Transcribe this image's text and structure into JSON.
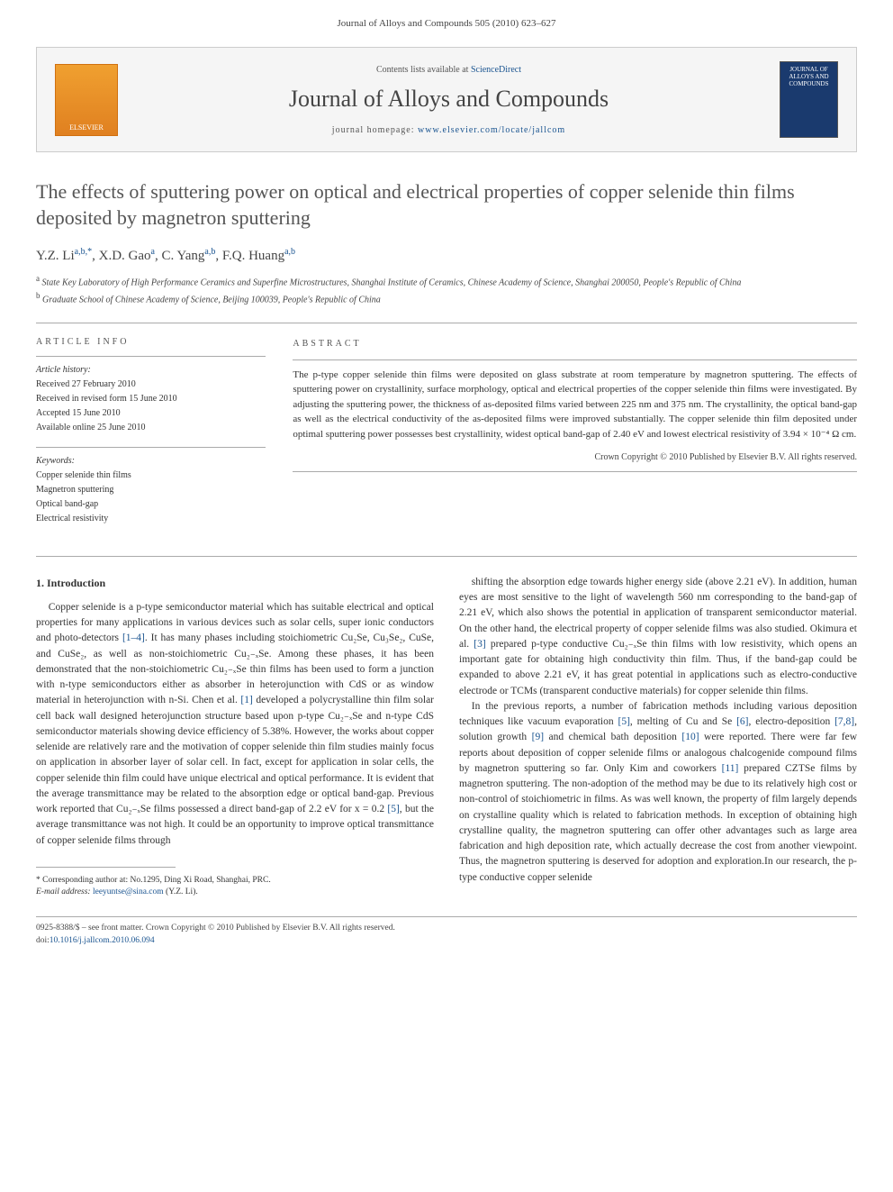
{
  "header": {
    "citation": "Journal of Alloys and Compounds 505 (2010) 623–627"
  },
  "banner": {
    "elsevier_label": "ELSEVIER",
    "contents_text": "Contents lists available at ",
    "contents_link": "ScienceDirect",
    "journal_name": "Journal of Alloys and Compounds",
    "homepage_label": "journal homepage: ",
    "homepage_url": "www.elsevier.com/locate/jallcom",
    "cover_text": "JOURNAL OF ALLOYS AND COMPOUNDS"
  },
  "article": {
    "title": "The effects of sputtering power on optical and electrical properties of copper selenide thin films deposited by magnetron sputtering",
    "authors_html": "Y.Z. Li<sup>a,b,*</sup>, X.D. Gao<sup>a</sup>, C. Yang<sup>a,b</sup>, F.Q. Huang<sup>a,b</sup>",
    "affiliation_a": "State Key Laboratory of High Performance Ceramics and Superfine Microstructures, Shanghai Institute of Ceramics, Chinese Academy of Science, Shanghai 200050, People's Republic of China",
    "affiliation_b": "Graduate School of Chinese Academy of Science, Beijing 100039, People's Republic of China"
  },
  "info": {
    "info_heading": "article info",
    "history_heading": "Article history:",
    "received": "Received 27 February 2010",
    "revised": "Received in revised form 15 June 2010",
    "accepted": "Accepted 15 June 2010",
    "online": "Available online 25 June 2010",
    "keywords_heading": "Keywords:",
    "keyword1": "Copper selenide thin films",
    "keyword2": "Magnetron sputtering",
    "keyword3": "Optical band-gap",
    "keyword4": "Electrical resistivity"
  },
  "abstract": {
    "heading": "abstract",
    "text": "The p-type copper selenide thin films were deposited on glass substrate at room temperature by magnetron sputtering. The effects of sputtering power on crystallinity, surface morphology, optical and electrical properties of the copper selenide thin films were investigated. By adjusting the sputtering power, the thickness of as-deposited films varied between 225 nm and 375 nm. The crystallinity, the optical band-gap as well as the electrical conductivity of the as-deposited films were improved substantially. The copper selenide thin film deposited under optimal sputtering power possesses best crystallinity, widest optical band-gap of 2.40 eV and lowest electrical resistivity of 3.94 × 10⁻⁴ Ω cm.",
    "copyright": "Crown Copyright © 2010 Published by Elsevier B.V. All rights reserved."
  },
  "body": {
    "section1_heading": "1. Introduction",
    "col1_p1": "Copper selenide is a p-type semiconductor material which has suitable electrical and optical properties for many applications in various devices such as solar cells, super ionic conductors and photo-detectors [1–4]. It has many phases including stoichiometric Cu₂Se, Cu₃Se₂, CuSe, and CuSe₂, as well as non-stoichiometric Cu₂₋ₓSe. Among these phases, it has been demonstrated that the non-stoichiometric Cu₂₋ₓSe thin films has been used to form a junction with n-type semiconductors either as absorber in heterojunction with CdS or as window material in heterojunction with n-Si. Chen et al. [1] developed a polycrystalline thin film solar cell back wall designed heterojunction structure based upon p-type Cu₂₋ₓSe and n-type CdS semiconductor materials showing device efficiency of 5.38%. However, the works about copper selenide are relatively rare and the motivation of copper selenide thin film studies mainly focus on application in absorber layer of solar cell. In fact, except for application in solar cells, the copper selenide thin film could have unique electrical and optical performance. It is evident that the average transmittance may be related to the absorption edge or optical band-gap. Previous work reported that Cu₂₋ₓSe films possessed a direct band-gap of 2.2 eV for x = 0.2 [5], but the average transmittance was not high. It could be an opportunity to improve optical transmittance of copper selenide films through",
    "col2_p1": "shifting the absorption edge towards higher energy side (above 2.21 eV). In addition, human eyes are most sensitive to the light of wavelength 560 nm corresponding to the band-gap of 2.21 eV, which also shows the potential in application of transparent semiconductor material. On the other hand, the electrical property of copper selenide films was also studied. Okimura et al. [3] prepared p-type conductive Cu₂₋ₓSe thin films with low resistivity, which opens an important gate for obtaining high conductivity thin film. Thus, if the band-gap could be expanded to above 2.21 eV, it has great potential in applications such as electro-conductive electrode or TCMs (transparent conductive materials) for copper selenide thin films.",
    "col2_p2": "In the previous reports, a number of fabrication methods including various deposition techniques like vacuum evaporation [5], melting of Cu and Se [6], electro-deposition [7,8], solution growth [9] and chemical bath deposition [10] were reported. There were far few reports about deposition of copper selenide films or analogous chalcogenide compound films by magnetron sputtering so far. Only Kim and coworkers [11] prepared CZTSe films by magnetron sputtering. The non-adoption of the method may be due to its relatively high cost or non-control of stoichiometric in films. As was well known, the property of film largely depends on crystalline quality which is related to fabrication methods. In exception of obtaining high crystalline quality, the magnetron sputtering can offer other advantages such as large area fabrication and high deposition rate, which actually decrease the cost from another viewpoint. Thus, the magnetron sputtering is deserved for adoption and exploration.In our research, the p-type conductive copper selenide"
  },
  "footnote": {
    "corresponding": "* Corresponding author at: No.1295, Ding Xi Road, Shanghai, PRC.",
    "email_label": "E-mail address: ",
    "email": "leeyuntse@sina.com",
    "email_name": " (Y.Z. Li)."
  },
  "bottom": {
    "issn": "0925-8388/$ – see front matter. Crown Copyright © 2010 Published by Elsevier B.V. All rights reserved.",
    "doi_label": "doi:",
    "doi": "10.1016/j.jallcom.2010.06.094"
  },
  "colors": {
    "link": "#1a5490",
    "text": "#333333",
    "heading": "#555555"
  }
}
